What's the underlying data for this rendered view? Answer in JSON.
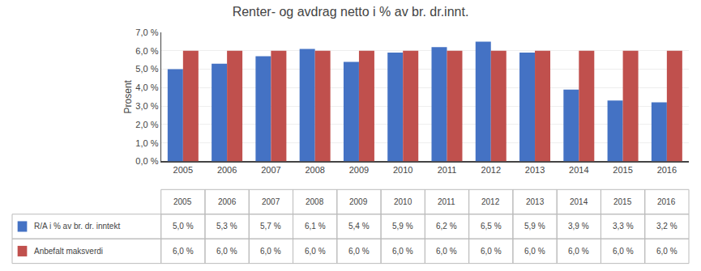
{
  "chart_data": {
    "type": "bar",
    "title": "Renter- og avdrag netto i % av br. dr.innt.",
    "ylabel": "Prosent",
    "categories": [
      "2005",
      "2006",
      "2007",
      "2008",
      "2009",
      "2010",
      "2011",
      "2012",
      "2013",
      "2014",
      "2015",
      "2016"
    ],
    "series": [
      {
        "name": "R/A i % av br. dr. inntekt",
        "color": "#4472C4",
        "values": [
          5.0,
          5.3,
          5.7,
          6.1,
          5.4,
          5.9,
          6.2,
          6.5,
          5.9,
          3.9,
          3.3,
          3.2
        ],
        "value_labels": [
          "5,0 %",
          "5,3 %",
          "5,7 %",
          "6,1 %",
          "5,4 %",
          "5,9 %",
          "6,2 %",
          "6,5 %",
          "5,9 %",
          "3,9 %",
          "3,3 %",
          "3,2 %"
        ]
      },
      {
        "name": "Anbefalt maksverdi",
        "color": "#C0504D",
        "values": [
          6.0,
          6.0,
          6.0,
          6.0,
          6.0,
          6.0,
          6.0,
          6.0,
          6.0,
          6.0,
          6.0,
          6.0
        ],
        "value_labels": [
          "6,0 %",
          "6,0 %",
          "6,0 %",
          "6,0 %",
          "6,0 %",
          "6,0 %",
          "6,0 %",
          "6,0 %",
          "6,0 %",
          "6,0 %",
          "6,0 %",
          "6,0 %"
        ]
      }
    ],
    "ylim": [
      0.0,
      7.0
    ],
    "yticks": [
      {
        "value": 0.0,
        "label": "0,0 %"
      },
      {
        "value": 1.0,
        "label": "1,0 %"
      },
      {
        "value": 2.0,
        "label": "2,0 %"
      },
      {
        "value": 3.0,
        "label": "3,0 %"
      },
      {
        "value": 4.0,
        "label": "4,0 %"
      },
      {
        "value": 5.0,
        "label": "5,0 %"
      },
      {
        "value": 6.0,
        "label": "6,0 %"
      },
      {
        "value": 7.0,
        "label": "7,0 %"
      }
    ],
    "grid": true
  }
}
